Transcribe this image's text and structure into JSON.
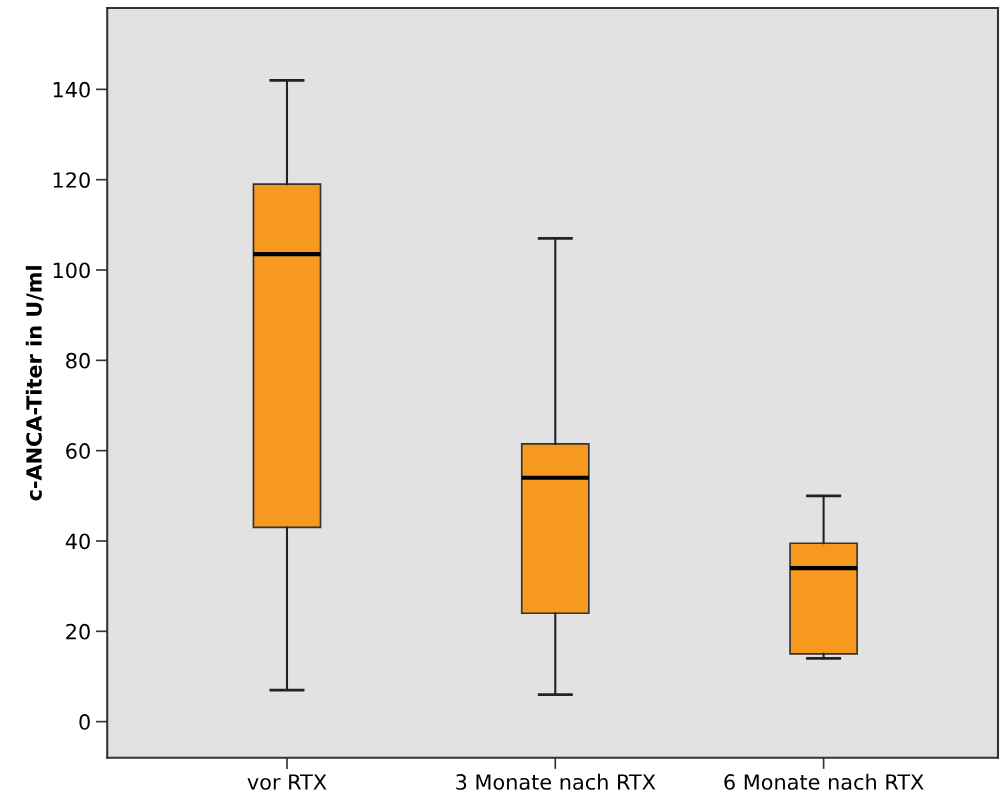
{
  "chart_data": {
    "type": "box",
    "ylabel": "c-ANCA-Titer in U/ml",
    "categories": [
      "vor RTX",
      "3 Monate nach RTX",
      "6 Monate nach RTX"
    ],
    "boxes": [
      {
        "low": 7,
        "q1": 43,
        "median": 103.5,
        "q3": 119,
        "high": 142
      },
      {
        "low": 6,
        "q1": 24,
        "median": 54,
        "q3": 61.5,
        "high": 107
      },
      {
        "low": 14,
        "q1": 15,
        "median": 34,
        "q3": 39.5,
        "high": 50
      }
    ],
    "color": "#f7991f",
    "ylim": [
      -8,
      158
    ],
    "yticks": [
      0,
      20,
      40,
      60,
      80,
      100,
      120,
      140
    ],
    "grid": false
  }
}
